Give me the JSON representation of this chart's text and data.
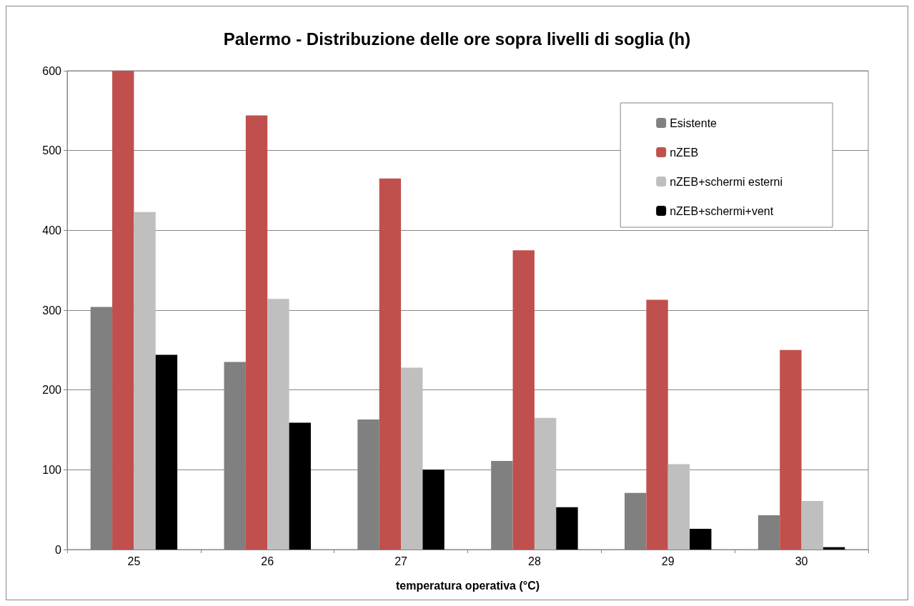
{
  "chart_data": {
    "type": "bar",
    "title": "Palermo - Distribuzione delle ore sopra livelli di soglia (h)",
    "xlabel": "temperatura operativa (°C)",
    "categories": [
      "25",
      "26",
      "27",
      "28",
      "29",
      "30"
    ],
    "series": [
      {
        "name": "Esistente",
        "color": "#808080",
        "values": [
          304,
          235,
          163,
          111,
          71,
          43
        ]
      },
      {
        "name": "nZEB",
        "color": "#c0504d",
        "values": [
          600,
          544,
          465,
          375,
          313,
          250
        ]
      },
      {
        "name": "nZEB+schermi esterni",
        "color": "#bfbfbf",
        "values": [
          423,
          314,
          228,
          165,
          107,
          61
        ]
      },
      {
        "name": "nZEB+schermi+vent",
        "color": "#000000",
        "values": [
          244,
          159,
          100,
          53,
          26,
          3
        ]
      }
    ],
    "ylim": [
      0,
      600
    ],
    "yticks": [
      0,
      100,
      200,
      300,
      400,
      500,
      600
    ],
    "grid": "y",
    "legend": "top right"
  }
}
